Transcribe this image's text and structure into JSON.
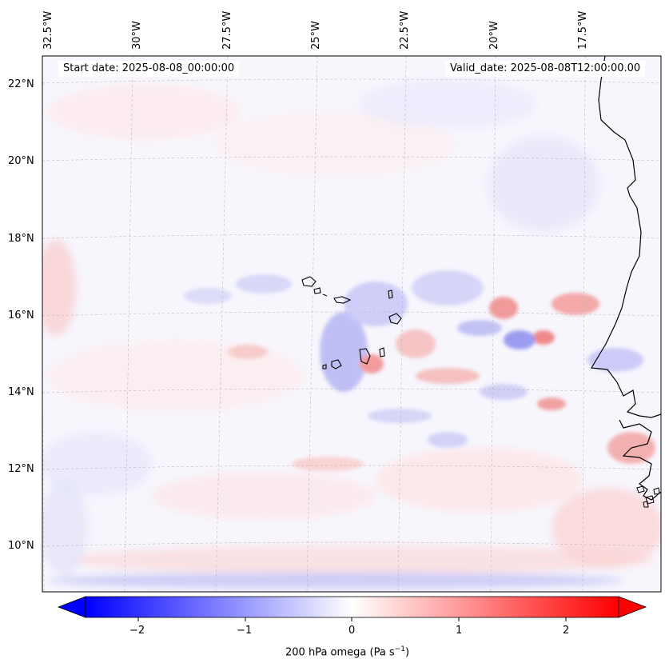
{
  "map": {
    "variable_label": "200 hPa omega (Pa s",
    "variable_unit_exponent": "−1",
    "variable_label_close": ")",
    "start_date": "Start date: 2025-08-08_00:00:00",
    "valid_date": "Valid_date: 2025-08-08T12:00:00.00",
    "region": "Cape Verde Islands and West African coast (Senegal, Gambia, Guinea-Bissau, Mauritania)",
    "lon_labels": [
      "32.5°W",
      "30°W",
      "27.5°W",
      "25°W",
      "22.5°W",
      "20°W",
      "17.5°W"
    ],
    "lat_labels": [
      "22°N",
      "20°N",
      "18°N",
      "16°N",
      "14°N",
      "12°N",
      "10°N"
    ],
    "gridlines": "dashed",
    "coastline_color": "#000000"
  },
  "colorbar": {
    "colormap": "bwr",
    "min": -2.6,
    "max": 2.6,
    "extend": "both",
    "low_color": "#0000ff",
    "mid_color": "#ffffff",
    "high_color": "#ff0000",
    "ticks": [
      "−2",
      "−1",
      "0",
      "1",
      "2"
    ]
  }
}
